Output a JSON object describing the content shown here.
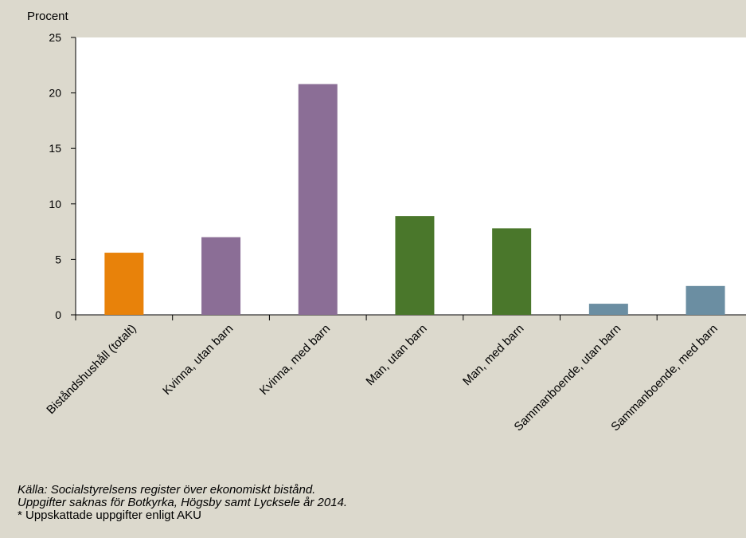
{
  "chart_data": {
    "type": "bar",
    "ylabel": "Procent",
    "xlabel": "",
    "ylim": [
      0,
      25
    ],
    "yticks": [
      0,
      5,
      10,
      15,
      20,
      25
    ],
    "categories": [
      "Biståndshushåll (totalt)",
      "Kvinna, utan barn",
      "Kvinna, med barn",
      "Man, utan barn",
      "Man, med barn",
      "Sammanboende, utan barn",
      "Sammanboende, med barn"
    ],
    "values": [
      5.6,
      7.0,
      20.8,
      8.9,
      7.8,
      1.0,
      2.6
    ],
    "colors": [
      "#e8820a",
      "#8b6e96",
      "#8b6e96",
      "#4a772b",
      "#4a772b",
      "#6b8ea2",
      "#6b8ea2"
    ],
    "grid": false,
    "legend": "none"
  },
  "notes": {
    "source": "Källa: Socialstyrelsens register över ekonomiskt bistånd.",
    "missing": "Uppgifter saknas för Botkyrka, Högsby samt Lycksele år 2014.",
    "estimated": "* Uppskattade uppgifter enligt AKU"
  }
}
